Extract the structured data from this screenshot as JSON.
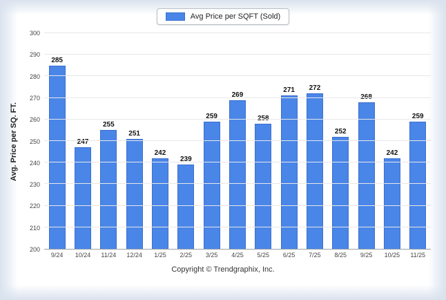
{
  "footer": "Copyright © Trendgraphix, Inc.",
  "chart_data": {
    "type": "bar",
    "title": "",
    "legend_label": "Avg Price per SQFT (Sold)",
    "categories": [
      "9/24",
      "10/24",
      "11/24",
      "12/24",
      "1/25",
      "2/25",
      "3/25",
      "4/25",
      "5/25",
      "6/25",
      "7/25",
      "8/25",
      "9/25",
      "10/25",
      "11/25"
    ],
    "values": [
      285,
      247,
      255,
      251,
      242,
      239,
      259,
      269,
      258,
      271,
      272,
      252,
      268,
      242,
      259
    ],
    "xlabel": "",
    "ylabel": "Avg. Price per SQ. FT.",
    "ylim": [
      200,
      300
    ],
    "y_ticks": [
      200,
      210,
      220,
      230,
      240,
      250,
      260,
      270,
      280,
      290,
      300
    ],
    "grid": true,
    "legend_position": "top-center",
    "bar_color": "#4a86e8",
    "bar_border_color": "#3a6fd0"
  }
}
